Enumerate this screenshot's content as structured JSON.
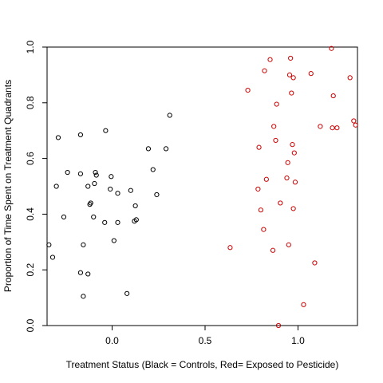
{
  "chart_data": {
    "type": "scatter",
    "title": "",
    "xlabel": "Treatment Status (Black = Controls, Red= Exposed to Pesticide)",
    "ylabel": "Proportion of Time Spent on Treatment Quadrants",
    "xlim": [
      -0.35,
      1.32
    ],
    "ylim": [
      0.0,
      1.0
    ],
    "xticks": [
      "0.0",
      "0.5",
      "1.0"
    ],
    "yticks": [
      "0.0",
      "0.2",
      "0.4",
      "0.6",
      "0.8",
      "1.0"
    ],
    "grid": false,
    "legend": "none",
    "series": [
      {
        "color": "#000000",
        "points": [
          [
            -0.34,
            0.29
          ],
          [
            -0.32,
            0.245
          ],
          [
            -0.3,
            0.5
          ],
          [
            -0.29,
            0.675
          ],
          [
            -0.26,
            0.39
          ],
          [
            -0.24,
            0.55
          ],
          [
            -0.17,
            0.685
          ],
          [
            -0.17,
            0.545
          ],
          [
            -0.17,
            0.19
          ],
          [
            -0.155,
            0.29
          ],
          [
            -0.155,
            0.105
          ],
          [
            -0.13,
            0.5
          ],
          [
            -0.13,
            0.185
          ],
          [
            -0.12,
            0.435
          ],
          [
            -0.115,
            0.44
          ],
          [
            -0.1,
            0.39
          ],
          [
            -0.095,
            0.51
          ],
          [
            -0.09,
            0.55
          ],
          [
            -0.085,
            0.54
          ],
          [
            -0.04,
            0.37
          ],
          [
            -0.035,
            0.7
          ],
          [
            -0.01,
            0.49
          ],
          [
            -0.005,
            0.535
          ],
          [
            0.01,
            0.305
          ],
          [
            0.03,
            0.475
          ],
          [
            0.03,
            0.37
          ],
          [
            0.08,
            0.115
          ],
          [
            0.1,
            0.485
          ],
          [
            0.12,
            0.375
          ],
          [
            0.125,
            0.43
          ],
          [
            0.13,
            0.38
          ],
          [
            0.195,
            0.635
          ],
          [
            0.22,
            0.56
          ],
          [
            0.24,
            0.47
          ],
          [
            0.29,
            0.635
          ],
          [
            0.31,
            0.755
          ]
        ]
      },
      {
        "color": "#cc0000",
        "points": [
          [
            0.635,
            0.28
          ],
          [
            0.73,
            0.845
          ],
          [
            0.785,
            0.49
          ],
          [
            0.79,
            0.64
          ],
          [
            0.8,
            0.415
          ],
          [
            0.815,
            0.345
          ],
          [
            0.82,
            0.915
          ],
          [
            0.83,
            0.525
          ],
          [
            0.85,
            0.955
          ],
          [
            0.865,
            0.27
          ],
          [
            0.87,
            0.715
          ],
          [
            0.88,
            0.665
          ],
          [
            0.885,
            0.795
          ],
          [
            0.895,
            0.0
          ],
          [
            0.905,
            0.44
          ],
          [
            0.94,
            0.53
          ],
          [
            0.945,
            0.585
          ],
          [
            0.95,
            0.29
          ],
          [
            0.955,
            0.9
          ],
          [
            0.96,
            0.96
          ],
          [
            0.965,
            0.835
          ],
          [
            0.97,
            0.65
          ],
          [
            0.975,
            0.42
          ],
          [
            0.975,
            0.89
          ],
          [
            0.98,
            0.62
          ],
          [
            0.985,
            0.515
          ],
          [
            1.03,
            0.075
          ],
          [
            1.07,
            0.905
          ],
          [
            1.09,
            0.225
          ],
          [
            1.12,
            0.715
          ],
          [
            1.18,
            0.995
          ],
          [
            1.185,
            0.71
          ],
          [
            1.19,
            0.825
          ],
          [
            1.21,
            0.71
          ],
          [
            1.28,
            0.89
          ],
          [
            1.3,
            0.735
          ],
          [
            1.31,
            0.72
          ]
        ]
      }
    ]
  }
}
